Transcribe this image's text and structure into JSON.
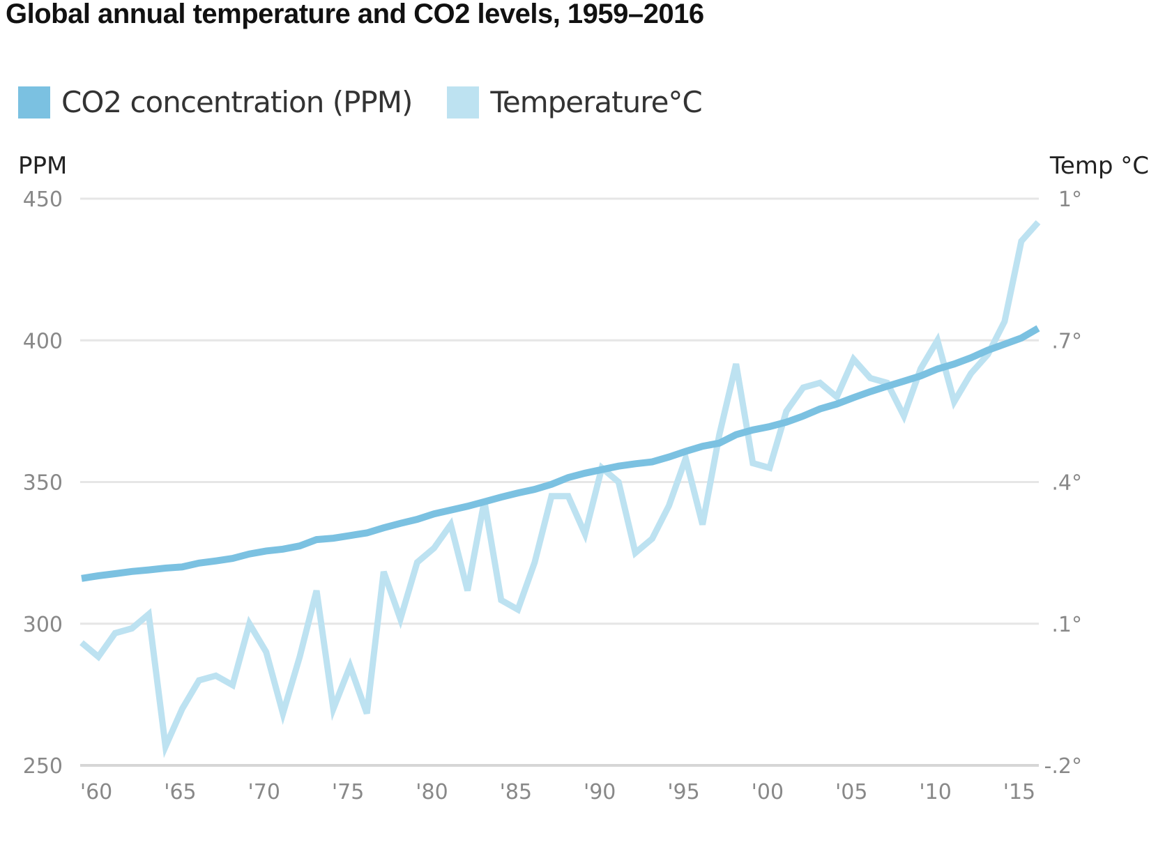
{
  "title": "Global annual temperature and CO2 levels, 1959–2016",
  "legend": [
    {
      "label": "CO2 concentration (PPM)",
      "color": "#7bc1e1"
    },
    {
      "label": "Temperature°C",
      "color": "#bde2f1"
    }
  ],
  "axes": {
    "left_title": "PPM",
    "right_title": "Temp °C"
  },
  "chart_data": {
    "type": "line",
    "title": "Global annual temperature and CO2 levels, 1959–2016",
    "xlabel": "",
    "ylabel": "PPM",
    "y2label": "Temp °C",
    "x": [
      1959,
      1960,
      1961,
      1962,
      1963,
      1964,
      1965,
      1966,
      1967,
      1968,
      1969,
      1970,
      1971,
      1972,
      1973,
      1974,
      1975,
      1976,
      1977,
      1978,
      1979,
      1980,
      1981,
      1982,
      1983,
      1984,
      1985,
      1986,
      1987,
      1988,
      1989,
      1990,
      1991,
      1992,
      1993,
      1994,
      1995,
      1996,
      1997,
      1998,
      1999,
      2000,
      2001,
      2002,
      2003,
      2004,
      2005,
      2006,
      2007,
      2008,
      2009,
      2010,
      2011,
      2012,
      2013,
      2014,
      2015,
      2016
    ],
    "xlim": [
      1959,
      2016
    ],
    "x_ticks": [
      1960,
      1965,
      1970,
      1975,
      1980,
      1985,
      1990,
      1995,
      2000,
      2005,
      2010,
      2015
    ],
    "x_tick_labels": [
      "'60",
      "'65",
      "'70",
      "'75",
      "'80",
      "'85",
      "'90",
      "'95",
      "'00",
      "'05",
      "'10",
      "'15"
    ],
    "ylim": [
      250,
      450
    ],
    "y_ticks": [
      450,
      400,
      350,
      300,
      250
    ],
    "y_tick_labels": [
      "450",
      "400",
      "350",
      "300",
      "250"
    ],
    "y2lim": [
      -0.2,
      1.0
    ],
    "y2_ticks": [
      1.0,
      0.7,
      0.4,
      0.1,
      -0.2
    ],
    "y2_tick_labels": [
      "1°",
      ".7°",
      ".4°",
      ".1°",
      "-.2°"
    ],
    "grid": true,
    "legend_position": "top-left",
    "series": [
      {
        "name": "CO2 concentration (PPM)",
        "axis": "left",
        "color": "#7bc1e1",
        "values": [
          315.97,
          316.91,
          317.64,
          318.45,
          318.99,
          319.62,
          320.04,
          321.38,
          322.16,
          323.04,
          324.62,
          325.68,
          326.32,
          327.45,
          329.68,
          330.18,
          331.11,
          332.04,
          333.83,
          335.4,
          336.84,
          338.75,
          340.11,
          341.45,
          343.05,
          344.65,
          346.12,
          347.42,
          349.19,
          351.57,
          353.12,
          354.39,
          355.61,
          356.45,
          357.1,
          358.83,
          360.82,
          362.61,
          363.73,
          366.7,
          368.38,
          369.55,
          371.14,
          373.28,
          375.8,
          377.52,
          379.8,
          381.9,
          383.79,
          385.6,
          387.43,
          389.9,
          391.65,
          393.85,
          396.52,
          398.65,
          400.83,
          404.24
        ]
      },
      {
        "name": "Temperature°C",
        "axis": "right",
        "color": "#bde2f1",
        "values": [
          0.06,
          0.03,
          0.08,
          0.09,
          0.12,
          -0.16,
          -0.08,
          -0.02,
          -0.01,
          -0.03,
          0.1,
          0.04,
          -0.09,
          0.03,
          0.17,
          -0.08,
          0.01,
          -0.09,
          0.21,
          0.11,
          0.23,
          0.26,
          0.31,
          0.17,
          0.36,
          0.15,
          0.13,
          0.23,
          0.37,
          0.37,
          0.29,
          0.43,
          0.4,
          0.25,
          0.28,
          0.35,
          0.45,
          0.31,
          0.5,
          0.65,
          0.44,
          0.43,
          0.55,
          0.6,
          0.61,
          0.58,
          0.66,
          0.62,
          0.61,
          0.54,
          0.64,
          0.7,
          0.57,
          0.63,
          0.67,
          0.74,
          0.91,
          0.95
        ]
      }
    ]
  }
}
